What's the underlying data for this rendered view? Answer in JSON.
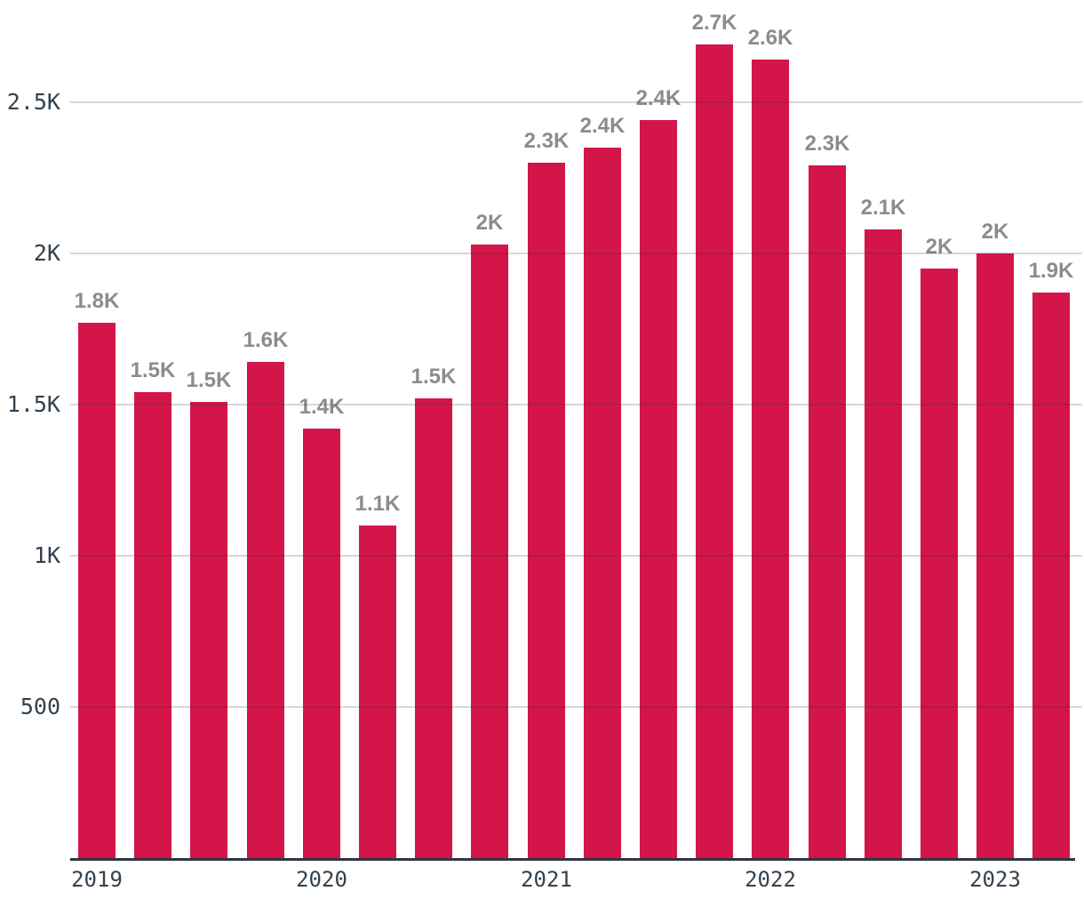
{
  "chart_data": {
    "type": "bar",
    "title": "",
    "xlabel": "",
    "ylabel": "",
    "grid": true,
    "legend": false,
    "ylim": [
      0,
      2830
    ],
    "y_tick_values": [
      500,
      1000,
      1500,
      2000,
      2500
    ],
    "y_tick_labels": [
      "500",
      "1K",
      "1.5K",
      "2K",
      "2.5K"
    ],
    "x_tick_labels": [
      "2019",
      "2020",
      "2021",
      "2022",
      "2023"
    ],
    "x_tick_bar_index": [
      0,
      4,
      8,
      12,
      16
    ],
    "values": [
      1770,
      1540,
      1510,
      1640,
      1420,
      1100,
      1520,
      2030,
      2300,
      2350,
      2440,
      2690,
      2640,
      2290,
      2080,
      1950,
      2000,
      1870
    ],
    "bar_labels": [
      "1.8K",
      "1.5K",
      "1.5K",
      "1.6K",
      "1.4K",
      "1.1K",
      "1.5K",
      "2K",
      "2.3K",
      "2.4K",
      "2.4K",
      "2.7K",
      "2.6K",
      "2.3K",
      "2.1K",
      "2K",
      "2K",
      "1.9K"
    ],
    "colors": {
      "bar": "#d31549",
      "bar_value_label": "#8c8c8c",
      "axis_text": "#33424f",
      "axis_line": "#2d3740",
      "gridline": "rgba(45,55,64,0.2)",
      "background": "#ffffff"
    }
  }
}
